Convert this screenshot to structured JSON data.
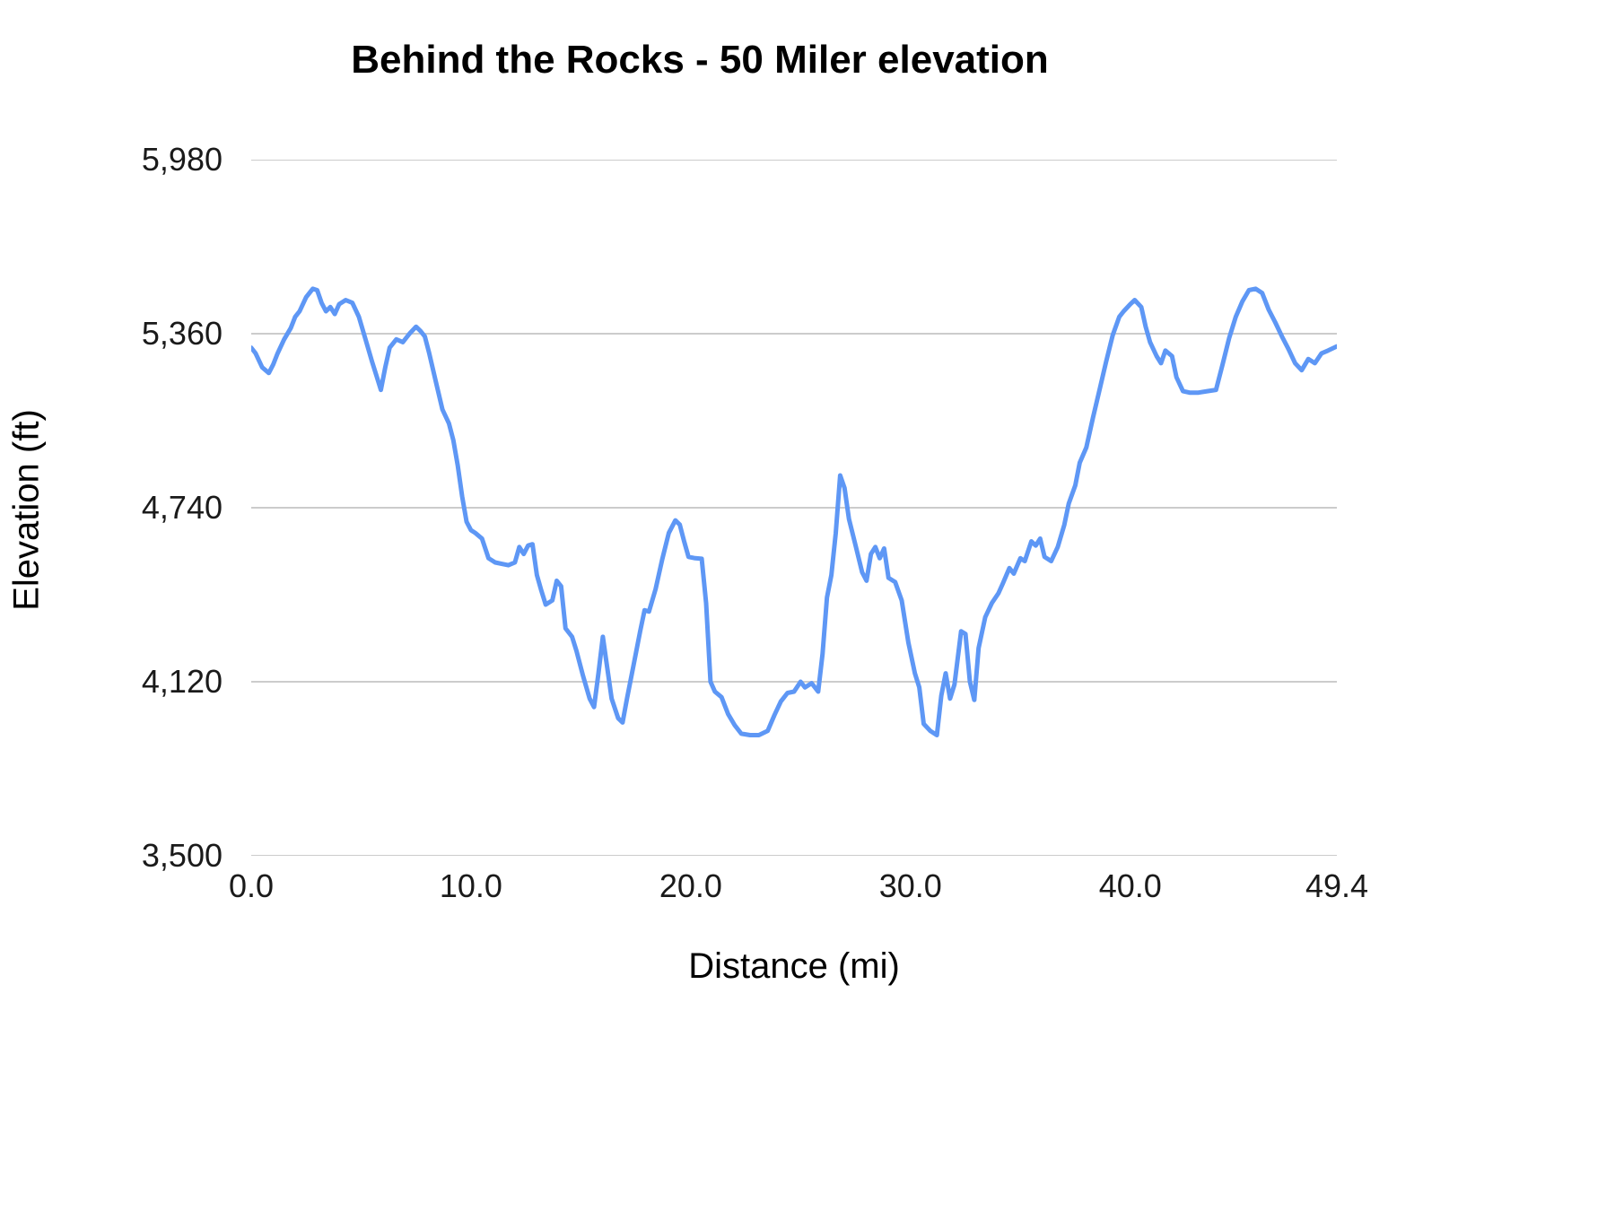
{
  "chart_data": {
    "type": "line",
    "title": "Behind the Rocks - 50 Miler elevation",
    "xlabel": "Distance (mi)",
    "ylabel": "Elevation (ft)",
    "xlim": [
      0,
      49.4
    ],
    "ylim": [
      3500,
      5980
    ],
    "grid": "horizontal",
    "legend": "none",
    "line_color": "#5e97f5",
    "gridline_color": "#cccccc",
    "x_tick_values": [
      0,
      10,
      20,
      30,
      40,
      49.4
    ],
    "x_tick_labels": [
      "0.0",
      "10.0",
      "20.0",
      "30.0",
      "40.0",
      "49.4"
    ],
    "y_tick_values": [
      3500,
      4120,
      4740,
      5360,
      5980
    ],
    "y_tick_labels": [
      "3,500",
      "4,120",
      "4,740",
      "5,360",
      "5,980"
    ],
    "series": [
      {
        "name": "Elevation",
        "points": [
          [
            0.0,
            5310
          ],
          [
            0.2,
            5290
          ],
          [
            0.5,
            5240
          ],
          [
            0.8,
            5220
          ],
          [
            1.0,
            5250
          ],
          [
            1.2,
            5290
          ],
          [
            1.5,
            5340
          ],
          [
            1.8,
            5380
          ],
          [
            2.0,
            5420
          ],
          [
            2.2,
            5440
          ],
          [
            2.5,
            5490
          ],
          [
            2.8,
            5520
          ],
          [
            3.0,
            5515
          ],
          [
            3.2,
            5470
          ],
          [
            3.4,
            5440
          ],
          [
            3.6,
            5455
          ],
          [
            3.8,
            5430
          ],
          [
            4.0,
            5465
          ],
          [
            4.3,
            5480
          ],
          [
            4.6,
            5470
          ],
          [
            4.9,
            5420
          ],
          [
            5.2,
            5340
          ],
          [
            5.5,
            5260
          ],
          [
            5.7,
            5210
          ],
          [
            5.9,
            5160
          ],
          [
            6.1,
            5240
          ],
          [
            6.3,
            5310
          ],
          [
            6.6,
            5340
          ],
          [
            6.9,
            5330
          ],
          [
            7.2,
            5360
          ],
          [
            7.5,
            5385
          ],
          [
            7.7,
            5370
          ],
          [
            7.9,
            5350
          ],
          [
            8.1,
            5290
          ],
          [
            8.4,
            5190
          ],
          [
            8.7,
            5090
          ],
          [
            9.0,
            5040
          ],
          [
            9.2,
            4980
          ],
          [
            9.4,
            4890
          ],
          [
            9.6,
            4780
          ],
          [
            9.8,
            4690
          ],
          [
            10.0,
            4660
          ],
          [
            10.2,
            4650
          ],
          [
            10.5,
            4630
          ],
          [
            10.8,
            4560
          ],
          [
            11.1,
            4545
          ],
          [
            11.4,
            4540
          ],
          [
            11.7,
            4535
          ],
          [
            12.0,
            4545
          ],
          [
            12.2,
            4600
          ],
          [
            12.4,
            4575
          ],
          [
            12.6,
            4605
          ],
          [
            12.8,
            4610
          ],
          [
            13.0,
            4500
          ],
          [
            13.2,
            4445
          ],
          [
            13.4,
            4395
          ],
          [
            13.7,
            4410
          ],
          [
            13.9,
            4480
          ],
          [
            14.1,
            4460
          ],
          [
            14.3,
            4310
          ],
          [
            14.6,
            4280
          ],
          [
            14.8,
            4230
          ],
          [
            15.1,
            4140
          ],
          [
            15.4,
            4060
          ],
          [
            15.6,
            4030
          ],
          [
            15.8,
            4150
          ],
          [
            16.0,
            4280
          ],
          [
            16.2,
            4170
          ],
          [
            16.4,
            4060
          ],
          [
            16.7,
            3990
          ],
          [
            16.9,
            3975
          ],
          [
            17.1,
            4060
          ],
          [
            17.4,
            4180
          ],
          [
            17.7,
            4300
          ],
          [
            17.9,
            4375
          ],
          [
            18.1,
            4370
          ],
          [
            18.4,
            4450
          ],
          [
            18.7,
            4555
          ],
          [
            19.0,
            4650
          ],
          [
            19.3,
            4695
          ],
          [
            19.5,
            4680
          ],
          [
            19.7,
            4620
          ],
          [
            19.9,
            4565
          ],
          [
            20.2,
            4560
          ],
          [
            20.5,
            4558
          ],
          [
            20.7,
            4400
          ],
          [
            20.9,
            4120
          ],
          [
            21.1,
            4085
          ],
          [
            21.4,
            4065
          ],
          [
            21.7,
            4005
          ],
          [
            22.0,
            3965
          ],
          [
            22.3,
            3935
          ],
          [
            22.7,
            3930
          ],
          [
            23.1,
            3930
          ],
          [
            23.5,
            3945
          ],
          [
            23.8,
            4000
          ],
          [
            24.1,
            4050
          ],
          [
            24.4,
            4080
          ],
          [
            24.7,
            4085
          ],
          [
            25.0,
            4120
          ],
          [
            25.2,
            4100
          ],
          [
            25.5,
            4115
          ],
          [
            25.8,
            4085
          ],
          [
            26.0,
            4220
          ],
          [
            26.2,
            4420
          ],
          [
            26.4,
            4500
          ],
          [
            26.6,
            4650
          ],
          [
            26.8,
            4855
          ],
          [
            27.0,
            4810
          ],
          [
            27.2,
            4700
          ],
          [
            27.5,
            4605
          ],
          [
            27.8,
            4510
          ],
          [
            28.0,
            4480
          ],
          [
            28.2,
            4575
          ],
          [
            28.4,
            4600
          ],
          [
            28.6,
            4560
          ],
          [
            28.8,
            4595
          ],
          [
            29.0,
            4490
          ],
          [
            29.3,
            4475
          ],
          [
            29.6,
            4410
          ],
          [
            29.9,
            4260
          ],
          [
            30.2,
            4150
          ],
          [
            30.4,
            4100
          ],
          [
            30.6,
            3970
          ],
          [
            30.9,
            3945
          ],
          [
            31.2,
            3930
          ],
          [
            31.4,
            4070
          ],
          [
            31.6,
            4150
          ],
          [
            31.8,
            4060
          ],
          [
            32.0,
            4110
          ],
          [
            32.3,
            4300
          ],
          [
            32.5,
            4290
          ],
          [
            32.7,
            4120
          ],
          [
            32.9,
            4055
          ],
          [
            33.1,
            4240
          ],
          [
            33.4,
            4350
          ],
          [
            33.7,
            4400
          ],
          [
            34.0,
            4435
          ],
          [
            34.2,
            4470
          ],
          [
            34.5,
            4525
          ],
          [
            34.7,
            4505
          ],
          [
            35.0,
            4560
          ],
          [
            35.2,
            4550
          ],
          [
            35.5,
            4620
          ],
          [
            35.7,
            4605
          ],
          [
            35.9,
            4630
          ],
          [
            36.1,
            4565
          ],
          [
            36.4,
            4550
          ],
          [
            36.7,
            4600
          ],
          [
            37.0,
            4680
          ],
          [
            37.2,
            4755
          ],
          [
            37.5,
            4820
          ],
          [
            37.7,
            4900
          ],
          [
            38.0,
            4955
          ],
          [
            38.3,
            5060
          ],
          [
            38.6,
            5160
          ],
          [
            38.9,
            5260
          ],
          [
            39.2,
            5355
          ],
          [
            39.5,
            5420
          ],
          [
            39.7,
            5440
          ],
          [
            40.0,
            5465
          ],
          [
            40.2,
            5480
          ],
          [
            40.5,
            5455
          ],
          [
            40.7,
            5385
          ],
          [
            40.9,
            5330
          ],
          [
            41.2,
            5280
          ],
          [
            41.4,
            5255
          ],
          [
            41.6,
            5300
          ],
          [
            41.9,
            5280
          ],
          [
            42.1,
            5205
          ],
          [
            42.4,
            5155
          ],
          [
            42.7,
            5150
          ],
          [
            43.1,
            5150
          ],
          [
            43.5,
            5155
          ],
          [
            43.9,
            5160
          ],
          [
            44.2,
            5250
          ],
          [
            44.5,
            5345
          ],
          [
            44.8,
            5420
          ],
          [
            45.1,
            5475
          ],
          [
            45.4,
            5515
          ],
          [
            45.7,
            5520
          ],
          [
            46.0,
            5505
          ],
          [
            46.3,
            5445
          ],
          [
            46.6,
            5400
          ],
          [
            46.9,
            5350
          ],
          [
            47.2,
            5305
          ],
          [
            47.5,
            5255
          ],
          [
            47.8,
            5230
          ],
          [
            48.1,
            5270
          ],
          [
            48.4,
            5255
          ],
          [
            48.7,
            5290
          ],
          [
            49.0,
            5300
          ],
          [
            49.4,
            5315
          ]
        ]
      }
    ]
  }
}
